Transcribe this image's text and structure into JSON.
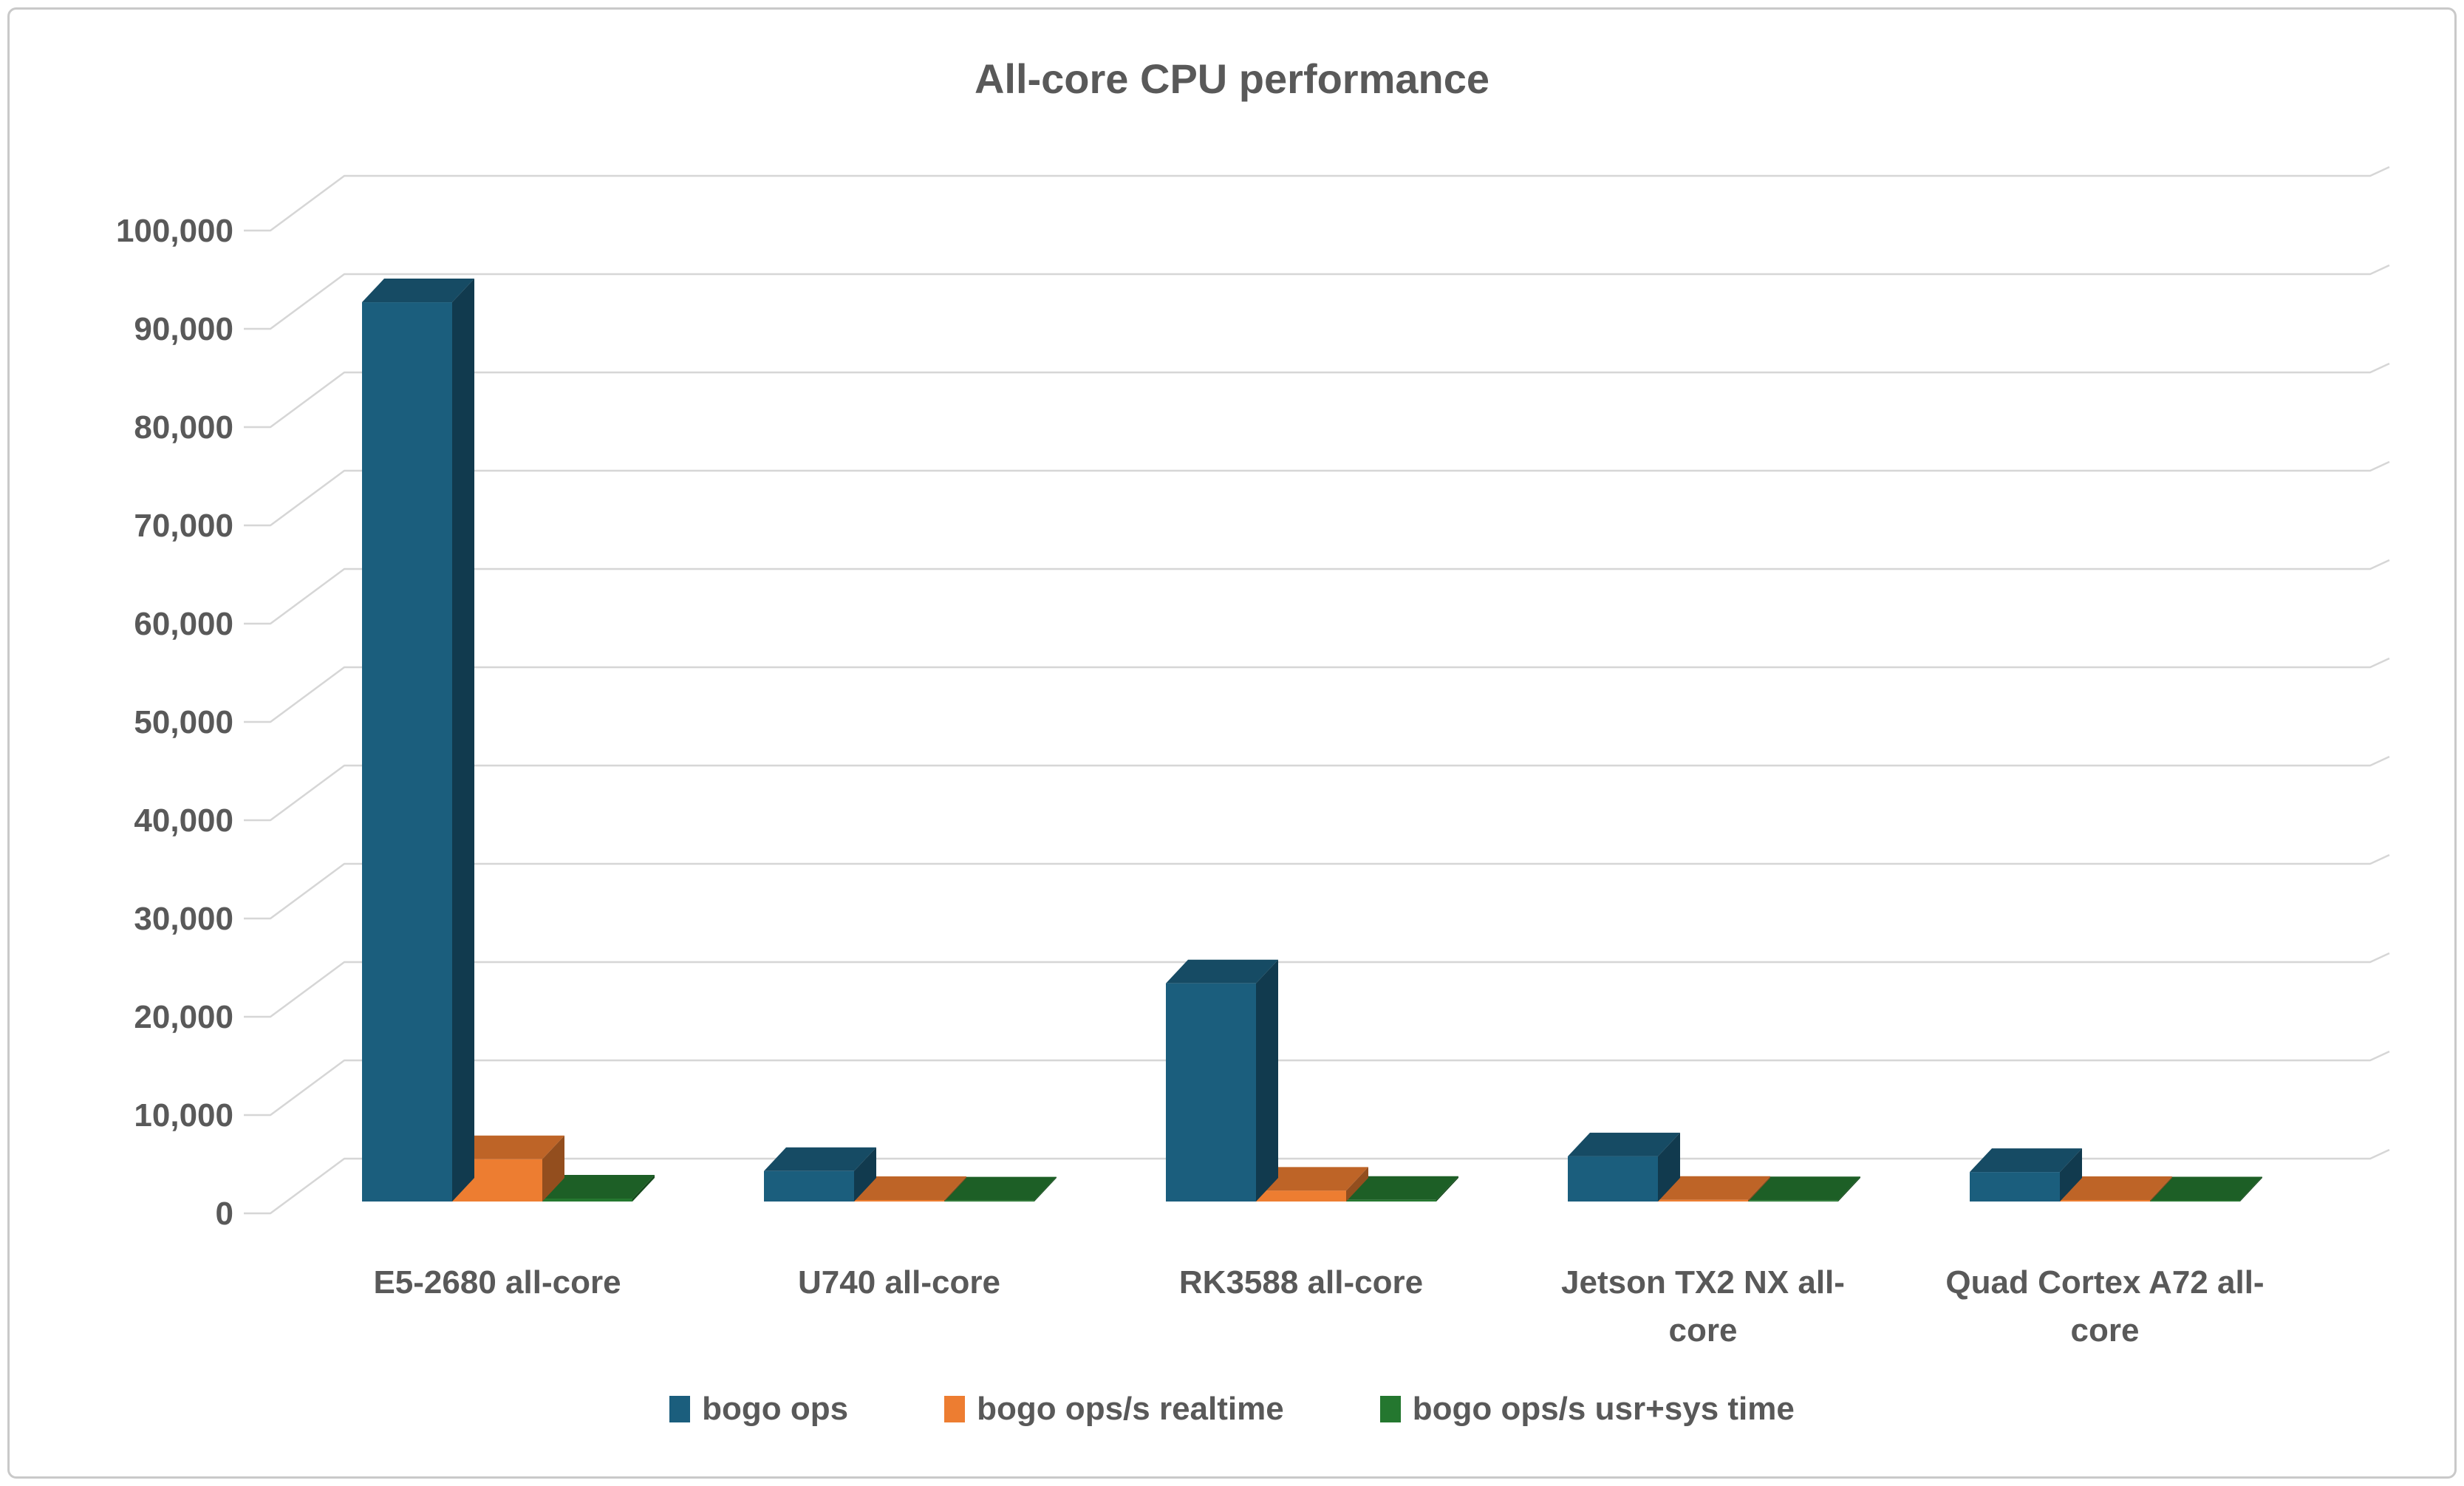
{
  "title": "All-core CPU performance",
  "colors": {
    "background": "#FFFFFF",
    "border": "#C9C9C9",
    "gridline": "#D6D6D6",
    "text": "#595959",
    "series_blue": "#1B5E7D",
    "series_orange": "#ED7D31",
    "series_green": "#24772F"
  },
  "chart_data": {
    "type": "bar",
    "subtype": "3d-clustered-column",
    "title": "All-core CPU performance",
    "categories": [
      "E5-2680 all-core",
      "U740 all-core",
      "RK3588 all-core",
      "Jetson TX2 NX all-core",
      "Quad Cortex A72 all-core"
    ],
    "category_label_lines": [
      [
        "E5-2680 all-core"
      ],
      [
        "U740 all-core"
      ],
      [
        "RK3588 all-core"
      ],
      [
        "Jetson TX2 NX all-",
        "core"
      ],
      [
        "Quad Cortex A72 all-",
        "core"
      ]
    ],
    "series": [
      {
        "name": "bogo ops",
        "color": "#1B5E7D",
        "values": [
          91500,
          3100,
          22200,
          4600,
          3000
        ]
      },
      {
        "name": "bogo ops/s realtime",
        "color": "#ED7D31",
        "values": [
          4300,
          150,
          1100,
          170,
          150
        ]
      },
      {
        "name": "bogo ops/s usr+sys time",
        "color": "#24772F",
        "values": [
          300,
          100,
          170,
          130,
          110
        ]
      }
    ],
    "ylim": [
      0,
      100000
    ],
    "ytick_step": 10000,
    "ytick_labels": [
      "0",
      "10,000",
      "20,000",
      "30,000",
      "40,000",
      "50,000",
      "60,000",
      "70,000",
      "80,000",
      "90,000",
      "100,000"
    ],
    "grid": true,
    "legend_position": "bottom"
  },
  "legend": {
    "items": [
      {
        "label": "bogo ops",
        "color": "#1B5E7D"
      },
      {
        "label": "bogo ops/s realtime",
        "color": "#ED7D31"
      },
      {
        "label": "bogo ops/s usr+sys time",
        "color": "#24772F"
      }
    ]
  }
}
